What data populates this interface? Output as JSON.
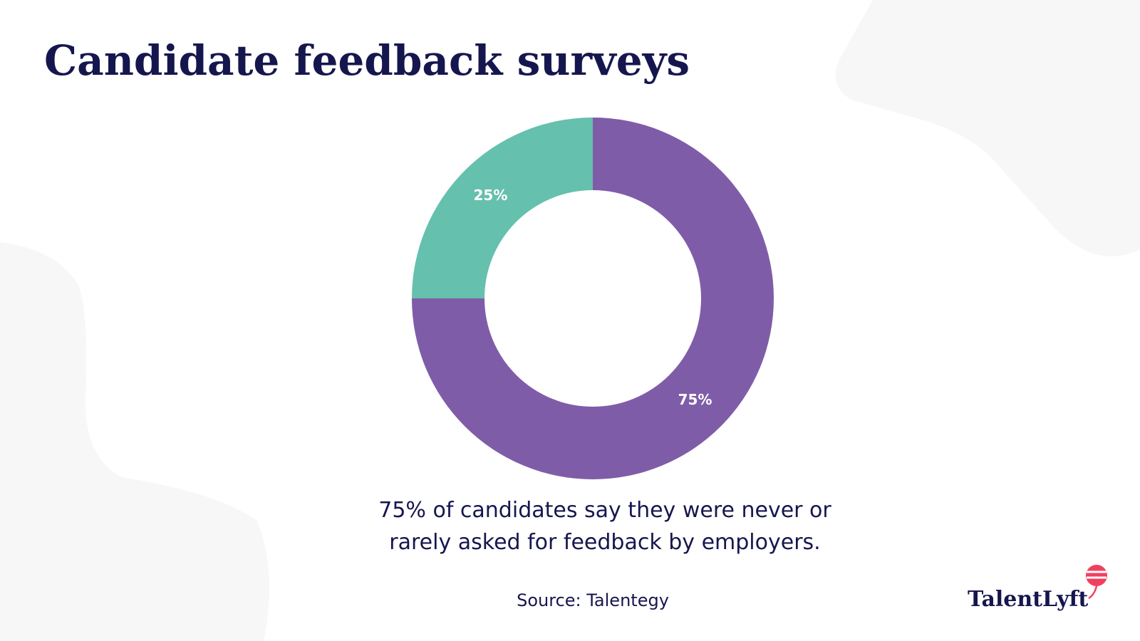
{
  "chart_data": {
    "type": "pie",
    "title": "Candidate feedback surveys",
    "values": [
      75,
      25
    ],
    "value_labels": [
      "75%",
      "25%"
    ],
    "colors": [
      "#7f5ca8",
      "#65c0ad"
    ],
    "caption": [
      "75% of candidates say they were never or",
      "rarely asked for feedback by employers."
    ],
    "source": "Source: Talentegy"
  },
  "logo": "TalentLyft"
}
